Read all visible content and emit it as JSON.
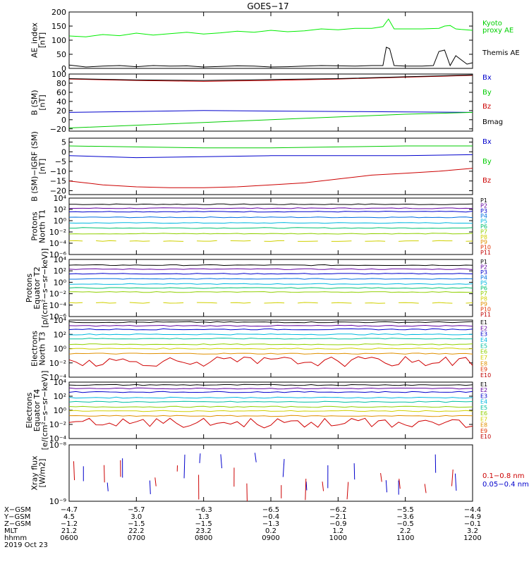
{
  "title": "GOES−17",
  "chart_data": {
    "type": "line",
    "x_range": [
      "0600",
      "1200"
    ],
    "panels": [
      {
        "id": "ae",
        "ylabel": [
          "AE_index",
          "[nT]"
        ],
        "scale": "linear",
        "ylim": [
          0,
          200
        ],
        "ticks": [
          0,
          50,
          100,
          150,
          200
        ],
        "tick_labels": [
          "0",
          "50",
          "100",
          "150",
          "200"
        ],
        "legend": [
          {
            "label": "Kyoto",
            "color": "#00d000"
          },
          {
            "label": "proxy AE",
            "color": "#00d000"
          },
          {
            "label": "",
            "color": "#00d000"
          },
          {
            "label": "Themis AE",
            "color": "#000000"
          }
        ],
        "series": [
          {
            "color": "#00ee00",
            "x": [
              "0600",
              "0615",
              "0630",
              "0645",
              "0700",
              "0715",
              "0730",
              "0745",
              "0800",
              "0815",
              "0830",
              "0845",
              "0900",
              "0915",
              "0930",
              "0945",
              "1000",
              "1015",
              "1030",
              "1040",
              "1045",
              "1050",
              "1100",
              "1115",
              "1130",
              "1135",
              "1140",
              "1145",
              "1150",
              "1200"
            ],
            "y": [
              115,
              112,
              120,
              116,
              125,
              118,
              123,
              128,
              122,
              126,
              132,
              128,
              135,
              130,
              133,
              140,
              137,
              142,
              142,
              148,
              175,
              140,
              140,
              140,
              142,
              150,
              152,
              140,
              138,
              135
            ]
          },
          {
            "color": "#000000",
            "x": [
              "0600",
              "0615",
              "0630",
              "0645",
              "0700",
              "0715",
              "0730",
              "0745",
              "0800",
              "0815",
              "0830",
              "0845",
              "0900",
              "0915",
              "0930",
              "0945",
              "1000",
              "1015",
              "1030",
              "1040",
              "1043",
              "1046",
              "1050",
              "1100",
              "1115",
              "1125",
              "1130",
              "1135",
              "1140",
              "1145",
              "1150",
              "1155",
              "1200"
            ],
            "y": [
              12,
              5,
              8,
              10,
              6,
              10,
              8,
              9,
              5,
              7,
              9,
              8,
              5,
              6,
              8,
              10,
              9,
              8,
              10,
              10,
              75,
              70,
              10,
              8,
              8,
              10,
              60,
              65,
              10,
              45,
              30,
              15,
              20
            ]
          }
        ]
      },
      {
        "id": "bsm",
        "ylabel": [
          "B (SM)",
          "[nT]"
        ],
        "scale": "linear",
        "ylim": [
          -25,
          100
        ],
        "ticks": [
          -20,
          0,
          20,
          40,
          60,
          80,
          100
        ],
        "tick_labels": [
          "−20",
          "0",
          "20",
          "40",
          "60",
          "80",
          "100"
        ],
        "legend": [
          {
            "label": "Bx",
            "color": "#0000cc"
          },
          {
            "label": "By",
            "color": "#00cc00"
          },
          {
            "label": "Bz",
            "color": "#cc0000"
          },
          {
            "label": "Bmag",
            "color": "#000000"
          }
        ],
        "series": [
          {
            "color": "#0000cc",
            "x": [
              "0600",
              "0700",
              "0800",
              "0900",
              "1000",
              "1100",
              "1200"
            ],
            "y": [
              16,
              18,
              20,
              19,
              18,
              17,
              16
            ]
          },
          {
            "color": "#00cc00",
            "x": [
              "0600",
              "0700",
              "0800",
              "0900",
              "1000",
              "1100",
              "1200"
            ],
            "y": [
              -18,
              -12,
              -6,
              0,
              6,
              12,
              16
            ]
          },
          {
            "color": "#cc0000",
            "x": [
              "0600",
              "0700",
              "0800",
              "0900",
              "1000",
              "1100",
              "1200"
            ],
            "y": [
              89,
              86,
              84,
              86,
              89,
              93,
              97
            ]
          },
          {
            "color": "#000000",
            "x": [
              "0600",
              "0700",
              "0800",
              "0900",
              "1000",
              "1100",
              "1200"
            ],
            "y": [
              90,
              87,
              86,
              88,
              90,
              94,
              98
            ]
          }
        ]
      },
      {
        "id": "bdiff",
        "ylabel": [
          "B (SM)−IGRF (SM)",
          "[nT]"
        ],
        "scale": "linear",
        "ylim": [
          -22,
          7
        ],
        "ticks": [
          -20,
          -15,
          -10,
          -5,
          0,
          5
        ],
        "tick_labels": [
          "−20",
          "−15",
          "−10",
          "−5",
          "0",
          "5"
        ],
        "legend": [
          {
            "label": "Bx",
            "color": "#0000cc"
          },
          {
            "label": "By",
            "color": "#00cc00"
          },
          {
            "label": "Bz",
            "color": "#cc0000"
          }
        ],
        "series": [
          {
            "color": "#00cc00",
            "x": [
              "0600",
              "0700",
              "0800",
              "0900",
              "1000",
              "1100",
              "1200"
            ],
            "y": [
              3,
              2.5,
              2,
              2,
              2.5,
              3,
              3
            ]
          },
          {
            "color": "#0000cc",
            "x": [
              "0600",
              "0700",
              "0800",
              "0900",
              "1000",
              "1100",
              "1200"
            ],
            "y": [
              -2,
              -3,
              -2.5,
              -2,
              -2,
              -2,
              -1.5
            ]
          },
          {
            "color": "#cc0000",
            "x": [
              "0600",
              "0630",
              "0700",
              "0730",
              "0800",
              "0830",
              "0900",
              "0930",
              "1000",
              "1030",
              "1100",
              "1130",
              "1200"
            ],
            "y": [
              -15,
              -17,
              -18,
              -18.5,
              -18.5,
              -18,
              -17,
              -16,
              -14,
              -12,
              -11,
              -10,
              -8.5
            ]
          }
        ]
      },
      {
        "id": "p_n",
        "ylabel": [
          "Protons",
          "North T1"
        ],
        "scale": "log",
        "ylim": [
          -6,
          4
        ],
        "ticks": [
          -6,
          -4,
          -2,
          0,
          2,
          4
        ],
        "tick_labels": [
          "10⁻⁶",
          "10⁻⁴",
          "10⁻²",
          "10⁰",
          "10²",
          "10⁴"
        ],
        "legend": [
          {
            "label": "P1",
            "color": "#000000"
          },
          {
            "label": "P2",
            "color": "#6000a0"
          },
          {
            "label": "P3",
            "color": "#0000cc"
          },
          {
            "label": "P4",
            "color": "#0070e0"
          },
          {
            "label": "P5",
            "color": "#00b8e0"
          },
          {
            "label": "P6",
            "color": "#00c070"
          },
          {
            "label": "P7",
            "color": "#90d000"
          },
          {
            "label": "P8",
            "color": "#d0d000"
          },
          {
            "label": "P9",
            "color": "#e09000"
          },
          {
            "label": "P10",
            "color": "#e03000"
          },
          {
            "label": "P11",
            "color": "#c00000"
          }
        ],
        "series": [
          {
            "color": "#000000",
            "level": 2.9
          },
          {
            "color": "#6000a0",
            "level": 2.2
          },
          {
            "color": "#0000cc",
            "level": 1.6
          },
          {
            "color": "#0070e0",
            "level": 0.6
          },
          {
            "color": "#00b8e0",
            "level": -0.4
          },
          {
            "color": "#00c070",
            "level": -1.3
          },
          {
            "color": "#90d000",
            "level": -2.3
          },
          {
            "color": "#d0d000",
            "level": -3.6,
            "dashed": true
          }
        ]
      },
      {
        "id": "p_e",
        "ylabel": [
          "Protons",
          "Equator T2",
          "[p/(cm²−s−sr−keV)]"
        ],
        "scale": "log",
        "ylim": [
          -6,
          4
        ],
        "ticks": [
          -6,
          -4,
          -2,
          0,
          2,
          4
        ],
        "tick_labels": [
          "10⁻⁶",
          "10⁻⁴",
          "10⁻²",
          "10⁰",
          "10²",
          "10⁴"
        ],
        "legend": [
          {
            "label": "P1",
            "color": "#000000"
          },
          {
            "label": "P2",
            "color": "#6000a0"
          },
          {
            "label": "P3",
            "color": "#0000cc"
          },
          {
            "label": "P4",
            "color": "#0070e0"
          },
          {
            "label": "P5",
            "color": "#00b8e0"
          },
          {
            "label": "P6",
            "color": "#00c070"
          },
          {
            "label": "P7",
            "color": "#90d000"
          },
          {
            "label": "P8",
            "color": "#d0d000"
          },
          {
            "label": "P9",
            "color": "#e09000"
          },
          {
            "label": "P10",
            "color": "#e03000"
          },
          {
            "label": "P11",
            "color": "#c00000"
          }
        ],
        "series": [
          {
            "color": "#000000",
            "level": 3.0
          },
          {
            "color": "#6000a0",
            "level": 2.3
          },
          {
            "color": "#0000cc",
            "level": 1.5
          },
          {
            "color": "#0070e0",
            "level": 0.6
          },
          {
            "color": "#00b8e0",
            "level": -0.3
          },
          {
            "color": "#00c070",
            "level": -1.0
          },
          {
            "color": "#90d000",
            "level": -1.7
          },
          {
            "color": "#d0d000",
            "level": -3.6,
            "dashed": true
          }
        ]
      },
      {
        "id": "e_n",
        "ylabel": [
          "Electrons",
          "North T3"
        ],
        "scale": "log",
        "ylim": [
          -4,
          4
        ],
        "ticks": [
          -4,
          -2,
          0,
          2,
          4
        ],
        "tick_labels": [
          "10⁻⁴",
          "10⁻²",
          "10⁰",
          "10²",
          "10⁴"
        ],
        "legend": [
          {
            "label": "E1",
            "color": "#000000"
          },
          {
            "label": "E2",
            "color": "#6000a0"
          },
          {
            "label": "E3",
            "color": "#0000cc"
          },
          {
            "label": "E4",
            "color": "#00b8e0"
          },
          {
            "label": "E5",
            "color": "#00c0a0"
          },
          {
            "label": "E6",
            "color": "#90d000"
          },
          {
            "label": "E7",
            "color": "#d0d000"
          },
          {
            "label": "E8",
            "color": "#e09000"
          },
          {
            "label": "E9",
            "color": "#e03000"
          },
          {
            "label": "E10",
            "color": "#c00000"
          }
        ],
        "series": [
          {
            "color": "#000000",
            "level": 3.7
          },
          {
            "color": "#6000a0",
            "level": 3.2
          },
          {
            "color": "#0000cc",
            "level": 2.7
          },
          {
            "color": "#00b8e0",
            "level": 2.0
          },
          {
            "color": "#00c0a0",
            "level": 1.4
          },
          {
            "color": "#90d000",
            "level": 0.6
          },
          {
            "color": "#d0d000",
            "level": 0.0
          },
          {
            "color": "#e09000",
            "level": -0.7
          },
          {
            "color": "#d00000",
            "level": -1.8,
            "noisy": true
          }
        ]
      },
      {
        "id": "e_e",
        "ylabel": [
          "Electrons",
          "Equator T4",
          "[e/(cm²−s−sr−keV)]"
        ],
        "scale": "log",
        "ylim": [
          -4,
          4
        ],
        "ticks": [
          -4,
          -2,
          0,
          2,
          4
        ],
        "tick_labels": [
          "10⁻⁴",
          "10⁻²",
          "10⁰",
          "10²",
          "10⁴"
        ],
        "legend": [
          {
            "label": "E1",
            "color": "#000000"
          },
          {
            "label": "E2",
            "color": "#6000a0"
          },
          {
            "label": "E3",
            "color": "#0000cc"
          },
          {
            "label": "E4",
            "color": "#00b8e0"
          },
          {
            "label": "E5",
            "color": "#00c0a0"
          },
          {
            "label": "E6",
            "color": "#90d000"
          },
          {
            "label": "E7",
            "color": "#d0d000"
          },
          {
            "label": "E8",
            "color": "#e09000"
          },
          {
            "label": "E9",
            "color": "#e03000"
          },
          {
            "label": "E10",
            "color": "#c00000"
          }
        ],
        "series": [
          {
            "color": "#000000",
            "level": 3.6
          },
          {
            "color": "#6000a0",
            "level": 3.1
          },
          {
            "color": "#0000cc",
            "level": 2.6
          },
          {
            "color": "#00b8e0",
            "level": 1.8
          },
          {
            "color": "#00c0a0",
            "level": 1.2
          },
          {
            "color": "#90d000",
            "level": 0.5
          },
          {
            "color": "#d0d000",
            "level": -0.1
          },
          {
            "color": "#e09000",
            "level": -0.8
          },
          {
            "color": "#d00000",
            "level": -1.8,
            "noisy": true
          }
        ]
      },
      {
        "id": "xray",
        "ylabel": [
          "Xray flux",
          "[W/m2]"
        ],
        "scale": "log",
        "ylim": [
          -9,
          -8
        ],
        "ticks": [
          -9,
          -8
        ],
        "tick_labels": [
          "10⁻⁹",
          "10⁻⁸"
        ],
        "legend": [
          {
            "label": "0.1−0.8 nm",
            "color": "#cc0000"
          },
          {
            "label": "0.05−0.4 nm",
            "color": "#0000cc"
          }
        ],
        "series": [
          {
            "color": "#0000cc",
            "sparse": true
          },
          {
            "color": "#cc0000",
            "sparse": true
          }
        ]
      }
    ],
    "x_table": {
      "rows": [
        {
          "label": "X−GSM",
          "values": [
            "−4.7",
            "−5.7",
            "−6.3",
            "−6.5",
            "−6.2",
            "−5.5",
            "−4.4"
          ]
        },
        {
          "label": "Y−GSM",
          "values": [
            "4.5",
            "3.0",
            "1.3",
            "−0.4",
            "−2.1",
            "−3.6",
            "−4.9"
          ]
        },
        {
          "label": "Z−GSM",
          "values": [
            "−1.2",
            "−1.5",
            "−1.5",
            "−1.3",
            "−0.9",
            "−0.5",
            "−0.1"
          ]
        },
        {
          "label": "MLT",
          "values": [
            "21.2",
            "22.2",
            "23.2",
            "0.2",
            "1.2",
            "2.2",
            "3.2"
          ]
        },
        {
          "label": "hhmm",
          "values": [
            "0600",
            "0700",
            "0800",
            "0900",
            "1000",
            "1100",
            "1200"
          ]
        }
      ],
      "date": "2019 Oct 23"
    }
  }
}
